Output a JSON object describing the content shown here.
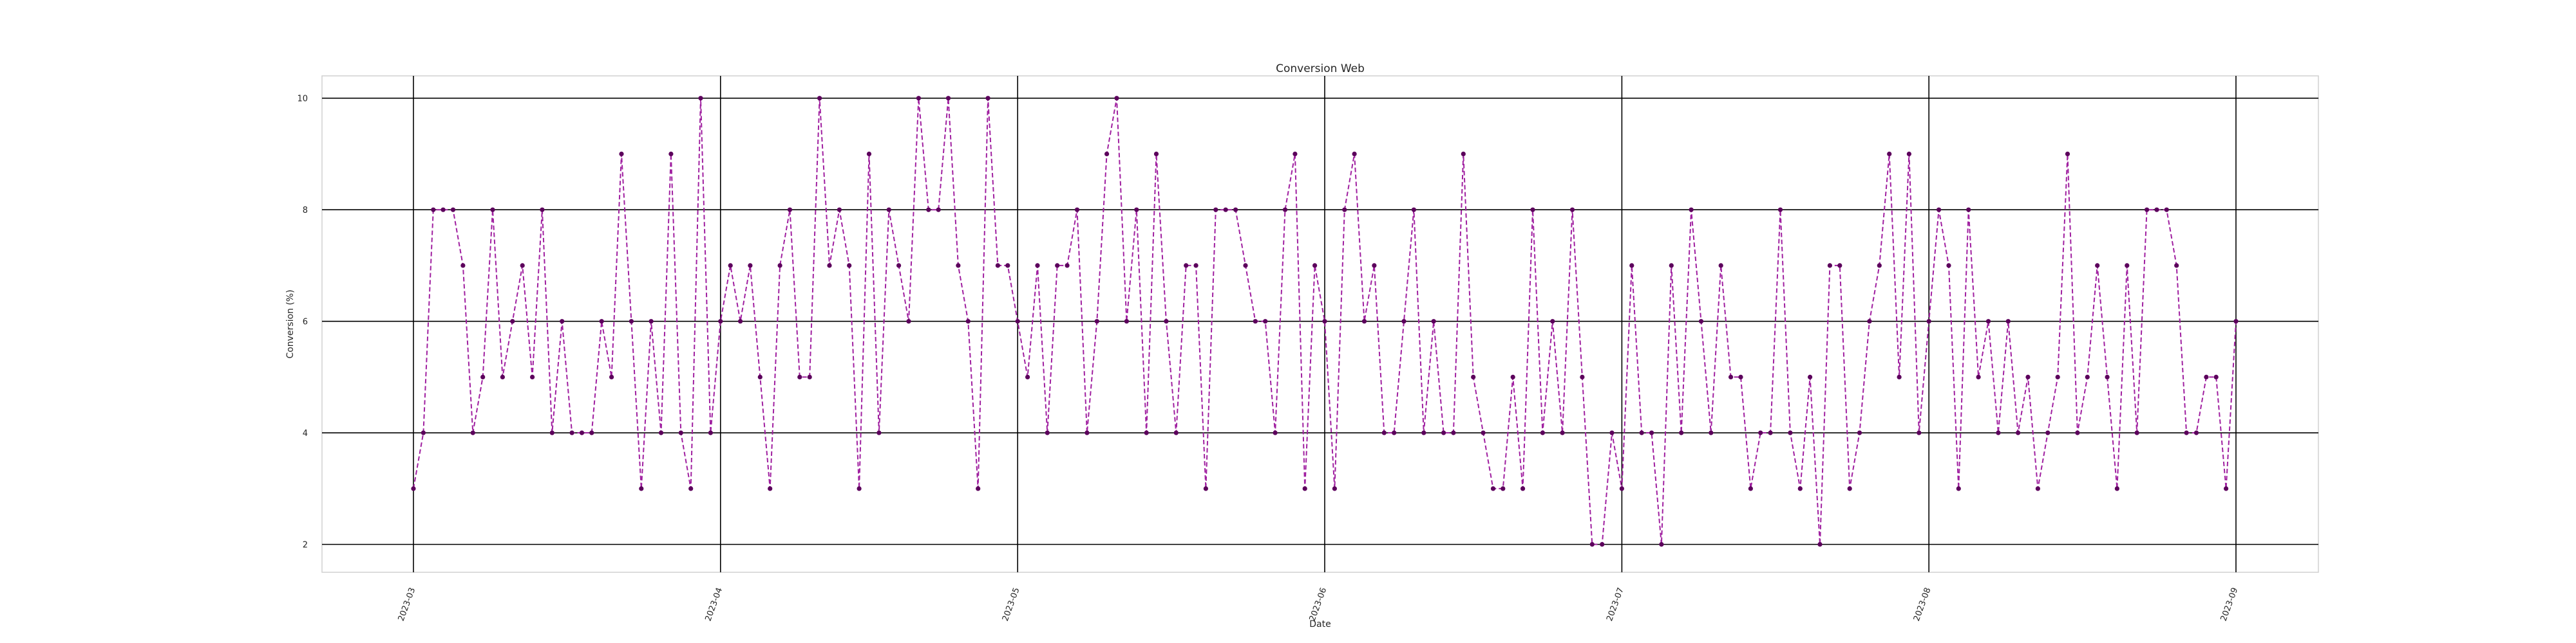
{
  "chart_data": {
    "type": "line",
    "title": "Conversion Web",
    "xlabel": "Date",
    "ylabel": "Conversion (%)",
    "x_start": "2023-03-01",
    "x_end": "2023-08-31",
    "xlim": [
      "2022-02-21",
      "2023-09-09"
    ],
    "ylim": [
      1.5,
      10.4
    ],
    "yticks": [
      2,
      4,
      6,
      8,
      10
    ],
    "xticks": [
      "2023-03",
      "2023-04",
      "2023-05",
      "2023-06",
      "2023-07",
      "2023-08",
      "2023-09"
    ],
    "grid": true,
    "line_style": "dashed",
    "marker": "circle",
    "colors": {
      "line": "#a020a0",
      "marker": "#5c005c",
      "grid": "#000000",
      "frame": "#d0d0d0"
    },
    "series": [
      {
        "values": [
          3,
          4,
          8,
          8,
          8,
          7,
          4,
          5,
          8,
          5,
          6,
          7,
          5,
          8,
          4,
          6,
          4,
          4,
          4,
          6,
          5,
          9,
          6,
          3,
          6,
          4,
          9,
          4,
          3,
          10,
          4,
          6,
          7,
          6,
          7,
          5,
          3,
          7,
          8,
          5,
          5,
          10,
          7,
          8,
          7,
          3,
          9,
          4,
          8,
          7,
          6,
          10,
          8,
          8,
          10,
          7,
          6,
          3,
          10,
          7,
          7,
          6,
          5,
          7,
          4,
          7,
          7,
          8,
          4,
          6,
          9,
          10,
          6,
          8,
          4,
          9,
          6,
          4,
          7,
          7,
          3,
          8,
          8,
          8,
          7,
          6,
          6,
          4,
          8,
          9,
          3,
          7,
          6,
          3,
          8,
          9,
          6,
          7,
          4,
          4,
          6,
          8,
          4,
          6,
          4,
          4,
          9,
          5,
          4,
          3,
          3,
          5,
          3,
          8,
          4,
          6,
          4,
          8,
          5,
          2,
          2,
          4,
          3,
          7,
          4,
          4,
          2,
          7,
          4,
          8,
          6,
          4,
          7,
          5,
          5,
          3,
          4,
          4,
          8,
          4,
          3,
          5,
          2,
          7,
          7,
          3,
          4,
          6,
          7,
          9,
          5,
          9,
          4,
          6,
          8,
          7,
          3,
          8,
          5,
          6,
          4,
          6,
          4,
          5,
          3,
          4,
          5,
          9,
          4,
          5,
          7,
          5,
          3,
          7,
          4,
          8,
          8,
          8,
          7,
          4,
          4,
          5,
          5,
          3,
          6
        ]
      }
    ]
  }
}
